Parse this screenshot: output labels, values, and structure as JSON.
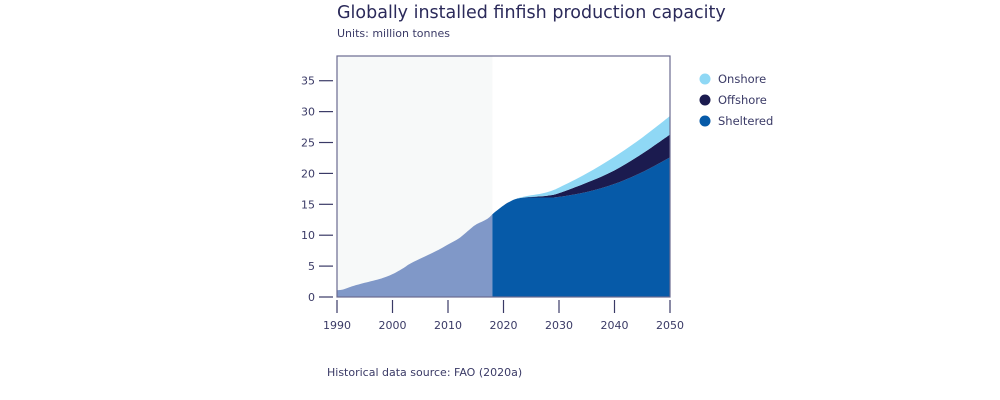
{
  "chart_data": {
    "type": "area",
    "title": "Globally installed finfish production capacity",
    "subtitle": "Units: million tonnes",
    "source": "Historical data source: FAO (2020a)",
    "xlim": [
      1990,
      2050
    ],
    "ylim": [
      0,
      39
    ],
    "x_ticks": [
      1990,
      2000,
      2010,
      2020,
      2030,
      2040,
      2050
    ],
    "y_ticks": [
      0,
      5,
      10,
      15,
      20,
      25,
      30,
      35
    ],
    "stacked": true,
    "legend_position": "right",
    "historical": {
      "x": [
        1990,
        1991,
        1992,
        1993,
        1995,
        1998,
        2000,
        2002,
        2003,
        2005,
        2008,
        2010,
        2012,
        2014,
        2015,
        2017,
        2018
      ],
      "values": [
        1.1,
        1.2,
        1.5,
        1.8,
        2.3,
        3.0,
        3.7,
        4.7,
        5.3,
        6.2,
        7.5,
        8.5,
        9.5,
        11.0,
        11.7,
        12.6,
        13.4
      ],
      "color": "#8098c8",
      "background": "#f7f9f9"
    },
    "projection_x": [
      2018,
      2020,
      2022,
      2024,
      2026,
      2028,
      2030,
      2035,
      2040,
      2045,
      2050
    ],
    "series": [
      {
        "name": "Sheltered",
        "color": "#065aa8",
        "values": [
          13.4,
          14.8,
          15.8,
          16.1,
          16.1,
          16.1,
          16.2,
          17.0,
          18.3,
          20.2,
          22.6
        ]
      },
      {
        "name": "Offshore",
        "color": "#1b1b4f",
        "values": [
          0,
          0,
          0,
          0.05,
          0.15,
          0.3,
          0.6,
          1.5,
          2.2,
          3.0,
          3.7
        ]
      },
      {
        "name": "Onshore",
        "color": "#8fd8f5",
        "values": [
          0,
          0,
          0,
          0.15,
          0.35,
          0.6,
          0.9,
          1.5,
          2.2,
          2.6,
          3.0
        ]
      }
    ],
    "legend": [
      "Onshore",
      "Offshore",
      "Sheltered"
    ]
  }
}
